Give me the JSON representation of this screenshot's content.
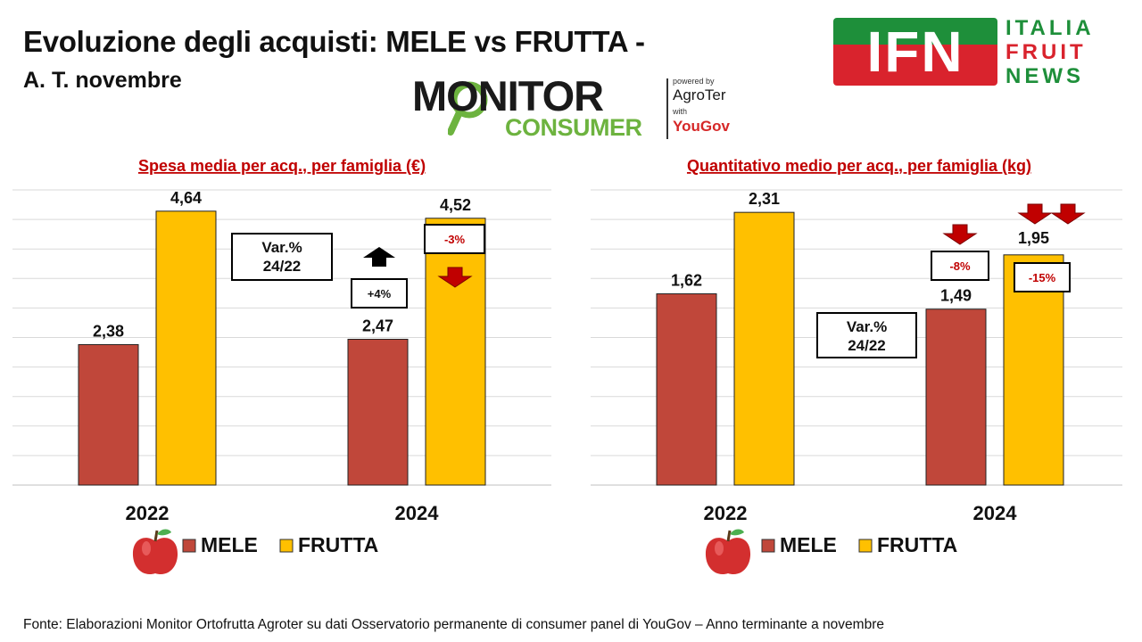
{
  "header": {
    "title": "Evoluzione degli acquisti: MELE vs FRUTTA -",
    "subtitle": "A. T. novembre"
  },
  "logo_monitor": {
    "word1": "MONITOR",
    "word2": "CONSUMER",
    "powered_by": "powered by",
    "partner1": "AgroTer",
    "with": "with",
    "partner2": "YouGov"
  },
  "logo_ifn": {
    "mark": "IFN",
    "line1": "ITALIA",
    "line2": "FRUIT",
    "line3": "NEWS"
  },
  "colors": {
    "mele": "#c0473a",
    "frutta": "#ffc000",
    "title_red": "#c00000",
    "arrow_red": "#c00000",
    "arrow_black": "#000000"
  },
  "chart_data": [
    {
      "type": "bar",
      "title": "Spesa media per acq., per famiglia (€)",
      "categories": [
        "2022",
        "2024"
      ],
      "series": [
        {
          "name": "MELE",
          "values": [
            2.38,
            2.47
          ],
          "labels": [
            "2,38",
            "2,47"
          ]
        },
        {
          "name": "FRUTTA",
          "values": [
            4.64,
            4.52
          ],
          "labels": [
            "4,64",
            "4,52"
          ]
        }
      ],
      "ylim": [
        0,
        5
      ],
      "grid": true,
      "legend": "bottom",
      "var_box": {
        "line1": "Var.%",
        "line2": "24/22"
      },
      "annotations": [
        {
          "series": "MELE",
          "text": "+4%",
          "direction": "up"
        },
        {
          "series": "FRUTTA",
          "text": "-3%",
          "direction": "down"
        }
      ]
    },
    {
      "type": "bar",
      "title": "Quantitativo medio per acq., per famiglia (kg)",
      "categories": [
        "2022",
        "2024"
      ],
      "series": [
        {
          "name": "MELE",
          "values": [
            1.62,
            1.49
          ],
          "labels": [
            "1,62",
            "1,49"
          ]
        },
        {
          "name": "FRUTTA",
          "values": [
            2.31,
            1.95
          ],
          "labels": [
            "2,31",
            "1,95"
          ]
        }
      ],
      "ylim": [
        0,
        2.5
      ],
      "grid": true,
      "legend": "bottom",
      "var_box": {
        "line1": "Var.%",
        "line2": "24/22"
      },
      "annotations": [
        {
          "series": "MELE",
          "text": "-8%",
          "direction": "down"
        },
        {
          "series": "FRUTTA",
          "text": "-15%",
          "direction": "down2"
        }
      ]
    }
  ],
  "footer": {
    "source": "Fonte: Elaborazioni Monitor Ortofrutta Agroter su dati Osservatorio permanente di consumer panel di YouGov  – Anno terminante a novembre"
  }
}
